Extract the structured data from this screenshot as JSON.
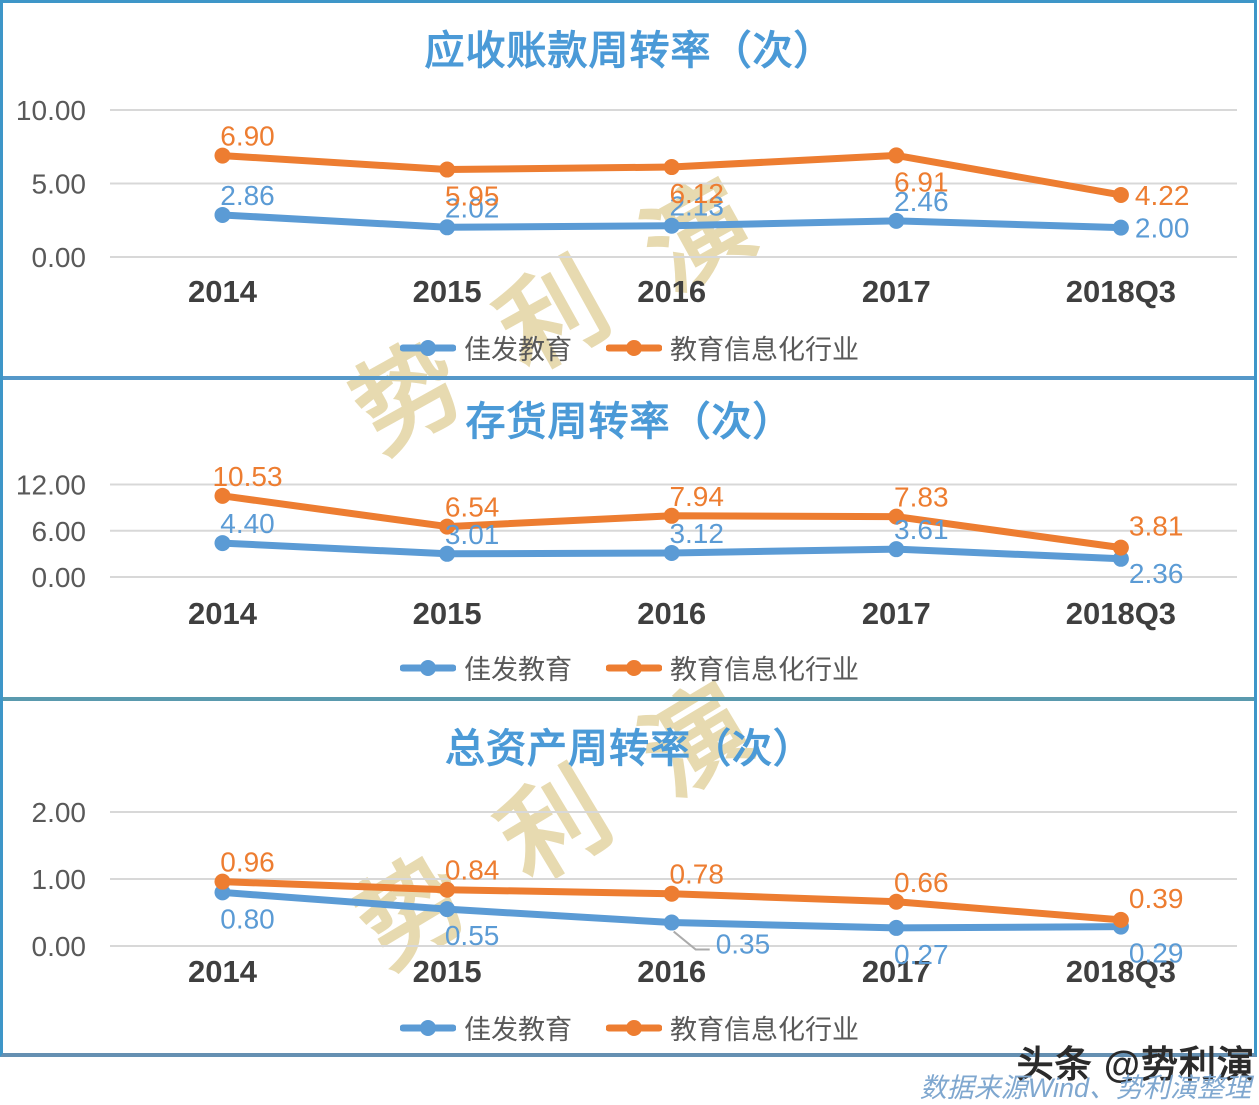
{
  "watermark": {
    "text": "势利演",
    "color": "#E3D4A3"
  },
  "footer": {
    "handle": "头条 @势利演",
    "source": "数据来源Wind、势利演整理",
    "source_color": "#7FA7CF"
  },
  "colors": {
    "company_series": "#5B9BD5",
    "industry_series": "#ED7D31",
    "title_blue": "#4B9AD7",
    "gridline": "#D8D8D8",
    "axis_tick_text": "#595959",
    "category_text": "#3F3F3F",
    "outer_border": "#3E96C8",
    "divider_1": "#5598C9",
    "divider_2": "#5A9AAE",
    "bottom_border": "#6590B2",
    "callout_leader": "#ABABAB"
  },
  "chart_data": [
    {
      "type": "line",
      "title": "应收账款周转率（次）",
      "categories": [
        "2014",
        "2015",
        "2016",
        "2017",
        "2018Q3"
      ],
      "ylim": [
        0,
        10
      ],
      "yticks": [
        0,
        5,
        10
      ],
      "ytick_labels": [
        "0.00",
        "5.00",
        "10.00"
      ],
      "grid": "horizontal",
      "legend_position": "bottom",
      "series": [
        {
          "name": "佳发教育",
          "color": "#5B9BD5",
          "values": [
            2.86,
            2.02,
            2.13,
            2.46,
            2.0
          ],
          "label_pos": [
            "above",
            "above",
            "above",
            "above",
            "right"
          ]
        },
        {
          "name": "教育信息化行业",
          "color": "#ED7D31",
          "values": [
            6.9,
            5.95,
            6.12,
            6.91,
            4.22
          ],
          "label_pos": [
            "above",
            "below",
            "below",
            "below",
            "right"
          ]
        }
      ]
    },
    {
      "type": "line",
      "title": "存货周转率（次）",
      "categories": [
        "2014",
        "2015",
        "2016",
        "2017",
        "2018Q3"
      ],
      "ylim": [
        0,
        12
      ],
      "yticks": [
        0,
        6,
        12
      ],
      "ytick_labels": [
        "0.00",
        "6.00",
        "12.00"
      ],
      "grid": "horizontal",
      "legend_position": "bottom",
      "series": [
        {
          "name": "佳发教育",
          "color": "#5B9BD5",
          "values": [
            4.4,
            3.01,
            3.12,
            3.61,
            2.36
          ],
          "label_pos": [
            "above",
            "above",
            "above",
            "above",
            "right_below"
          ]
        },
        {
          "name": "教育信息化行业",
          "color": "#ED7D31",
          "values": [
            10.53,
            6.54,
            7.94,
            7.83,
            3.81
          ],
          "label_pos": [
            "above",
            "above",
            "above",
            "above",
            "above_right"
          ]
        }
      ]
    },
    {
      "type": "line",
      "title": "总资产周转率（次）",
      "categories": [
        "2014",
        "2015",
        "2016",
        "2017",
        "2018Q3"
      ],
      "ylim": [
        0,
        2
      ],
      "yticks": [
        0,
        1,
        2
      ],
      "ytick_labels": [
        "0.00",
        "1.00",
        "2.00"
      ],
      "grid": "horizontal",
      "legend_position": "bottom",
      "series": [
        {
          "name": "佳发教育",
          "color": "#5B9BD5",
          "values": [
            0.8,
            0.55,
            0.35,
            0.27,
            0.29
          ],
          "label_pos": [
            "below",
            "below",
            "callout",
            "below",
            "below_right"
          ]
        },
        {
          "name": "教育信息化行业",
          "color": "#ED7D31",
          "values": [
            0.96,
            0.84,
            0.78,
            0.66,
            0.39
          ],
          "label_pos": [
            "above",
            "above",
            "above",
            "above",
            "above_right"
          ]
        }
      ]
    }
  ]
}
